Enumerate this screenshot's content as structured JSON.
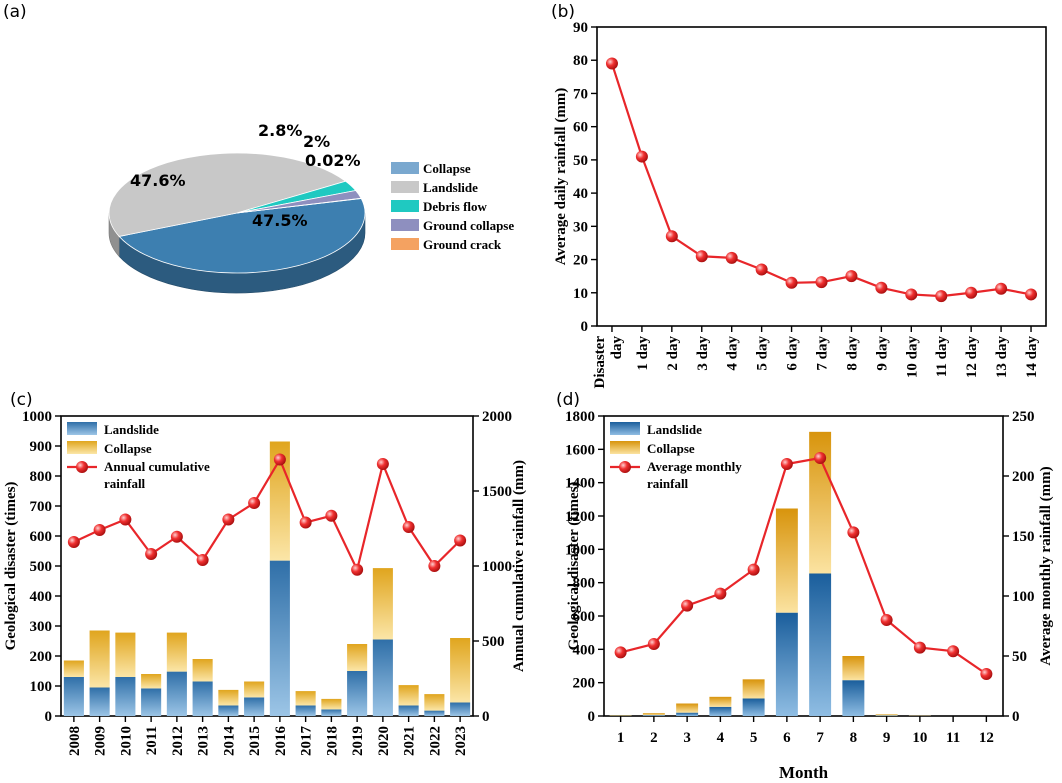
{
  "chart_data": [
    {
      "panel": "(a)",
      "type": "pie",
      "categories": [
        "Collapse",
        "Landslide",
        "Debris flow",
        "Ground collapse",
        "Ground crack"
      ],
      "values": [
        47.5,
        47.6,
        2.8,
        2,
        0.02
      ],
      "data_labels": [
        "47.5%",
        "47.6%",
        "2.8%",
        "2%",
        "0.02%"
      ],
      "colors": [
        "#3d7fb0",
        "#c8c8c8",
        "#1fc9c1",
        "#8e8fbf",
        "#f4a261"
      ],
      "legend_colors": [
        "#7aa8cf",
        "#c8c8c8",
        "#1fc9c1",
        "#8e8fbf",
        "#f4a261"
      ],
      "legend_position": "right"
    },
    {
      "panel": "(b)",
      "type": "line",
      "categories": [
        "Disaster day",
        "1 day",
        "2 day",
        "3 day",
        "4 day",
        "5 day",
        "6 day",
        "7 day",
        "8 day",
        "9 day",
        "10 day",
        "11 day",
        "12 day",
        "13 day",
        "14 day"
      ],
      "tick_lines": [
        [
          "Disaster",
          "day"
        ],
        [
          "1 day"
        ],
        [
          "2 day"
        ],
        [
          "3 day"
        ],
        [
          "4 day"
        ],
        [
          "5 day"
        ],
        [
          "6 day"
        ],
        [
          "7 day"
        ],
        [
          "8 day"
        ],
        [
          "9 day"
        ],
        [
          "10 day"
        ],
        [
          "11 day"
        ],
        [
          "12 day"
        ],
        [
          "13 day"
        ],
        [
          "14 day"
        ]
      ],
      "values": [
        79,
        51,
        27,
        21,
        20.5,
        17,
        13,
        13.2,
        15,
        11.5,
        9.5,
        9,
        10,
        11.2,
        9.5
      ],
      "ylabel": "Average daily rainfall (mm)",
      "ylim": [
        0,
        90
      ],
      "yticks": [
        0,
        10,
        20,
        30,
        40,
        50,
        60,
        70,
        80,
        90
      ],
      "color": "#e8262a"
    },
    {
      "panel": "(c)",
      "type": "bar",
      "stacked": true,
      "categories": [
        "2008",
        "2009",
        "2010",
        "2011",
        "2012",
        "2013",
        "2014",
        "2015",
        "2016",
        "2017",
        "2018",
        "2019",
        "2020",
        "2021",
        "2022",
        "2023"
      ],
      "series": [
        {
          "name": "Landslide",
          "values": [
            130,
            95,
            130,
            92,
            148,
            115,
            35,
            62,
            518,
            35,
            22,
            150,
            255,
            35,
            18,
            45
          ]
        },
        {
          "name": "Collapse",
          "values": [
            55,
            190,
            148,
            48,
            130,
            75,
            52,
            53,
            397,
            48,
            35,
            90,
            238,
            68,
            55,
            215
          ]
        },
        {
          "name": "Annual cumulative rainfall",
          "axis": "right",
          "values": [
            1160,
            1240,
            1310,
            1080,
            1195,
            1040,
            1310,
            1420,
            1710,
            1290,
            1335,
            975,
            1680,
            1260,
            1000,
            1170
          ]
        }
      ],
      "legend": [
        "Landslide",
        "Collapse",
        "Annual cumulative",
        "rainfall"
      ],
      "ylabel": "Geological disaster (times)",
      "y2label": "Annual cumulative rainfall (mm)",
      "ylim": [
        0,
        1000
      ],
      "y2lim": [
        0,
        2000
      ],
      "yticks": [
        0,
        100,
        200,
        300,
        400,
        500,
        600,
        700,
        800,
        900,
        1000
      ],
      "y2ticks": [
        0,
        500,
        1000,
        1500,
        2000
      ]
    },
    {
      "panel": "(d)",
      "type": "bar",
      "stacked": true,
      "categories": [
        "1",
        "2",
        "3",
        "4",
        "5",
        "6",
        "7",
        "8",
        "9",
        "10",
        "11",
        "12"
      ],
      "series": [
        {
          "name": "Landslide",
          "values": [
            2,
            5,
            20,
            55,
            105,
            620,
            855,
            215,
            3,
            1,
            0,
            0
          ]
        },
        {
          "name": "Collapse",
          "values": [
            3,
            12,
            55,
            60,
            115,
            625,
            850,
            145,
            7,
            2,
            0,
            0
          ]
        },
        {
          "name": "Average monthly rainfall",
          "axis": "right",
          "values": [
            53,
            60,
            92,
            102,
            122,
            210,
            215,
            153,
            80,
            57,
            54,
            35
          ]
        }
      ],
      "legend": [
        "Landslide",
        "Collapse",
        "Average monthly",
        "rainfall"
      ],
      "xlabel": "Month",
      "ylabel": "Geological disaster (times)",
      "y2label": "Average monthly rainfall (mm)",
      "ylim": [
        0,
        1800
      ],
      "y2lim": [
        0,
        250
      ],
      "yticks": [
        0,
        200,
        400,
        600,
        800,
        1000,
        1200,
        1400,
        1600,
        1800
      ],
      "y2ticks": [
        0,
        50,
        100,
        150,
        200,
        250
      ]
    }
  ]
}
